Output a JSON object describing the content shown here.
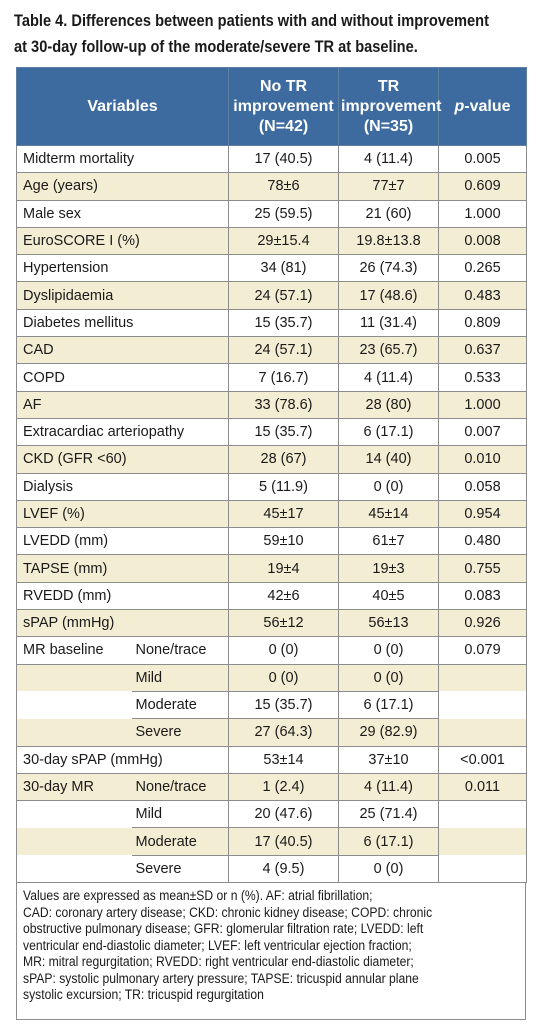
{
  "title_lines": [
    "Table 4. Differences between patients with and without improvement",
    "at 30-day follow-up of the moderate/severe TR at baseline."
  ],
  "header": {
    "variables": "Variables",
    "col_no": [
      "No TR",
      "improvement",
      "(N=42)"
    ],
    "col_yes": [
      "TR",
      "improvement",
      "(N=35)"
    ],
    "col_p_italic": "p",
    "col_p_rest": "-value"
  },
  "rows": [
    {
      "label": "Midterm mortality",
      "no": "17 (40.5)",
      "yes": "4 (11.4)",
      "p": "0.005"
    },
    {
      "label": "Age (years)",
      "no": "78±6",
      "yes": "77±7",
      "p": "0.609"
    },
    {
      "label": "Male sex",
      "no": "25 (59.5)",
      "yes": "21 (60)",
      "p": "1.000"
    },
    {
      "label": "EuroSCORE I (%)",
      "no": "29±15.4",
      "yes": "19.8±13.8",
      "p": "0.008"
    },
    {
      "label": "Hypertension",
      "no": "34 (81)",
      "yes": "26 (74.3)",
      "p": "0.265"
    },
    {
      "label": "Dyslipidaemia",
      "no": "24 (57.1)",
      "yes": "17 (48.6)",
      "p": "0.483"
    },
    {
      "label": "Diabetes mellitus",
      "no": "15 (35.7)",
      "yes": "11 (31.4)",
      "p": "0.809"
    },
    {
      "label": "CAD",
      "no": "24 (57.1)",
      "yes": "23 (65.7)",
      "p": "0.637"
    },
    {
      "label": "COPD",
      "no": "7 (16.7)",
      "yes": "4 (11.4)",
      "p": "0.533"
    },
    {
      "label": "AF",
      "no": "33 (78.6)",
      "yes": "28 (80)",
      "p": "1.000"
    },
    {
      "label": "Extracardiac arteriopathy",
      "no": "15 (35.7)",
      "yes": "6 (17.1)",
      "p": "0.007"
    },
    {
      "label": "CKD (GFR <60)",
      "no": "28 (67)",
      "yes": "14 (40)",
      "p": "0.010"
    },
    {
      "label": "Dialysis",
      "no": "5 (11.9)",
      "yes": "0 (0)",
      "p": "0.058"
    },
    {
      "label": "LVEF (%)",
      "no": "45±17",
      "yes": "45±14",
      "p": "0.954"
    },
    {
      "label": "LVEDD (mm)",
      "no": "59±10",
      "yes": "61±7",
      "p": "0.480"
    },
    {
      "label": "TAPSE (mm)",
      "no": "19±4",
      "yes": "19±3",
      "p": "0.755"
    },
    {
      "label": "RVEDD (mm)",
      "no": "42±6",
      "yes": "40±5",
      "p": "0.083"
    },
    {
      "label": "sPAP (mmHg)",
      "no": "56±12",
      "yes": "56±13",
      "p": "0.926"
    }
  ],
  "mr_baseline": {
    "label": "MR baseline",
    "p": "0.079",
    "rows": [
      {
        "sub": "None/trace",
        "no": "0 (0)",
        "yes": "0 (0)"
      },
      {
        "sub": "Mild",
        "no": "0 (0)",
        "yes": "0 (0)"
      },
      {
        "sub": "Moderate",
        "no": "15 (35.7)",
        "yes": "6 (17.1)"
      },
      {
        "sub": "Severe",
        "no": "27 (64.3)",
        "yes": "29 (82.9)"
      }
    ]
  },
  "spap30": {
    "label": "30-day sPAP (mmHg)",
    "no": "53±14",
    "yes": "37±10",
    "p": "<0.001"
  },
  "mr30": {
    "label": "30-day MR",
    "p": "0.011",
    "rows": [
      {
        "sub": "None/trace",
        "no": "1 (2.4)",
        "yes": "4 (11.4)"
      },
      {
        "sub": "Mild",
        "no": "20 (47.6)",
        "yes": "25 (71.4)"
      },
      {
        "sub": "Moderate",
        "no": "17 (40.5)",
        "yes": "6 (17.1)"
      },
      {
        "sub": "Severe",
        "no": "4 (9.5)",
        "yes": "0 (0)"
      }
    ]
  },
  "footnote_lines": [
    "Values are expressed as mean±SD or n (%). AF: atrial fibrillation;",
    "CAD: coronary artery disease; CKD: chronic kidney disease; COPD: chronic",
    "obstructive pulmonary disease; GFR: glomerular filtration rate; LVEDD: left",
    "ventricular end-diastolic diameter; LVEF: left ventricular ejection fraction;",
    "MR: mitral regurgitation; RVEDD: right ventricular end-diastolic diameter;",
    "sPAP: systolic pulmonary artery pressure; TAPSE: tricuspid annular plane",
    "systolic excursion; TR: tricuspid regurgitation"
  ],
  "colors": {
    "header_bg": "#3d6b9f",
    "stripe": "#f3edd3",
    "border": "#8c8c8c"
  }
}
